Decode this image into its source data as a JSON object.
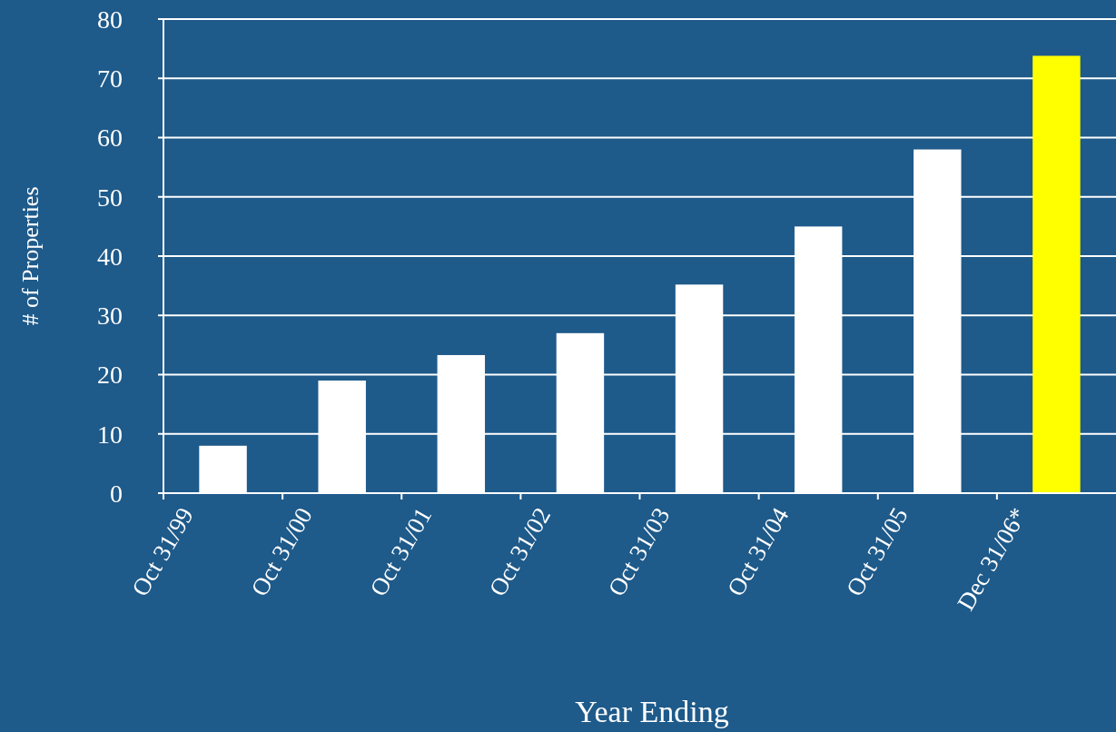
{
  "chart_data": {
    "type": "bar",
    "xlabel": "Year Ending",
    "ylabel": "# of Properties",
    "categories": [
      "Oct 31/99",
      "Oct 31/00",
      "Oct 31/01",
      "Oct 31/02",
      "Oct 31/03",
      "Oct 31/04",
      "Oct 31/05",
      "Dec 31/06*"
    ],
    "values": [
      8,
      19,
      23.3,
      27,
      35.2,
      45,
      58,
      73.8
    ],
    "colors": [
      "#ffffff",
      "#ffffff",
      "#ffffff",
      "#ffffff",
      "#ffffff",
      "#ffffff",
      "#ffffff",
      "#ffff00"
    ],
    "ylim": [
      0,
      80
    ],
    "yticks": [
      0,
      10,
      20,
      30,
      40,
      50,
      60,
      70,
      80
    ],
    "grid": "y"
  }
}
